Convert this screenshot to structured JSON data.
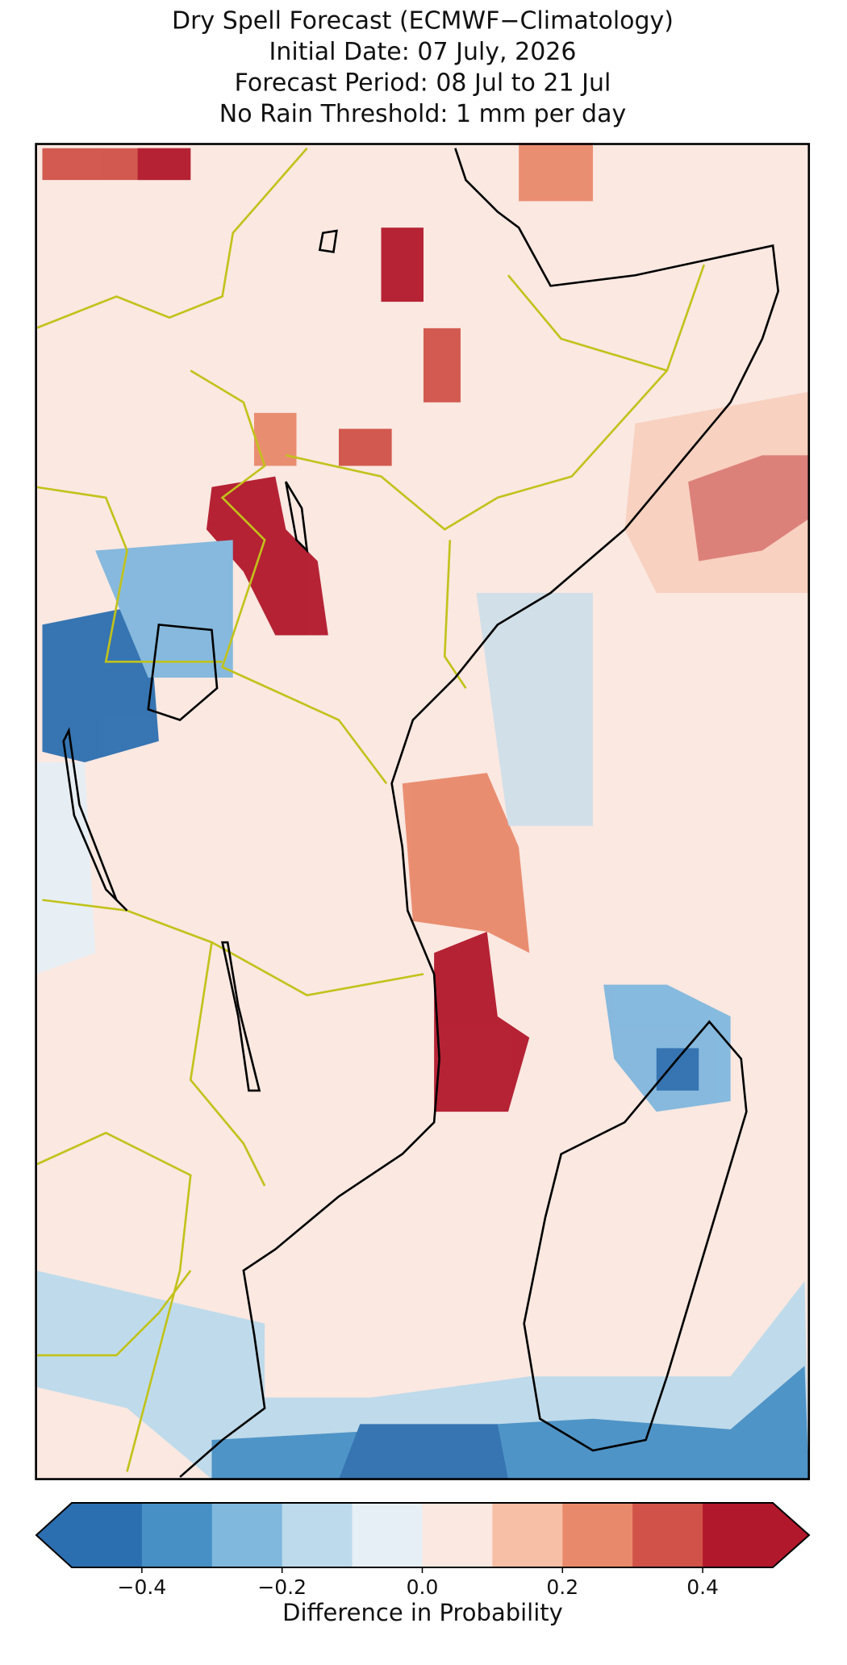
{
  "chart_data": {
    "type": "colorbar-map",
    "title_lines": [
      "Dry Spell Forecast (ECMWF−Climatology)",
      "Initial Date: 07 July, 2026",
      "Forecast Period: 08 Jul to 21 Jul",
      "No Rain Threshold: 1 mm per day"
    ],
    "colorbar": {
      "label": "Difference in Probability",
      "bounds": [
        -0.5,
        -0.4,
        -0.3,
        -0.2,
        -0.1,
        0,
        0.1,
        0.2,
        0.3,
        0.4,
        0.5
      ],
      "colors": [
        "#2c6fb0",
        "#4690c6",
        "#80b7dd",
        "#bcdaeb",
        "#e6eff5",
        "#fae8e1",
        "#f7bfa6",
        "#e9896b",
        "#d05248",
        "#b2182b"
      ],
      "extend": "both",
      "ticks": [
        {
          "value": -0.4,
          "label": "−0.4"
        },
        {
          "value": -0.2,
          "label": "−0.2"
        },
        {
          "value": 0,
          "label": "0.0"
        },
        0.2,
        0.4
      ]
    }
  }
}
